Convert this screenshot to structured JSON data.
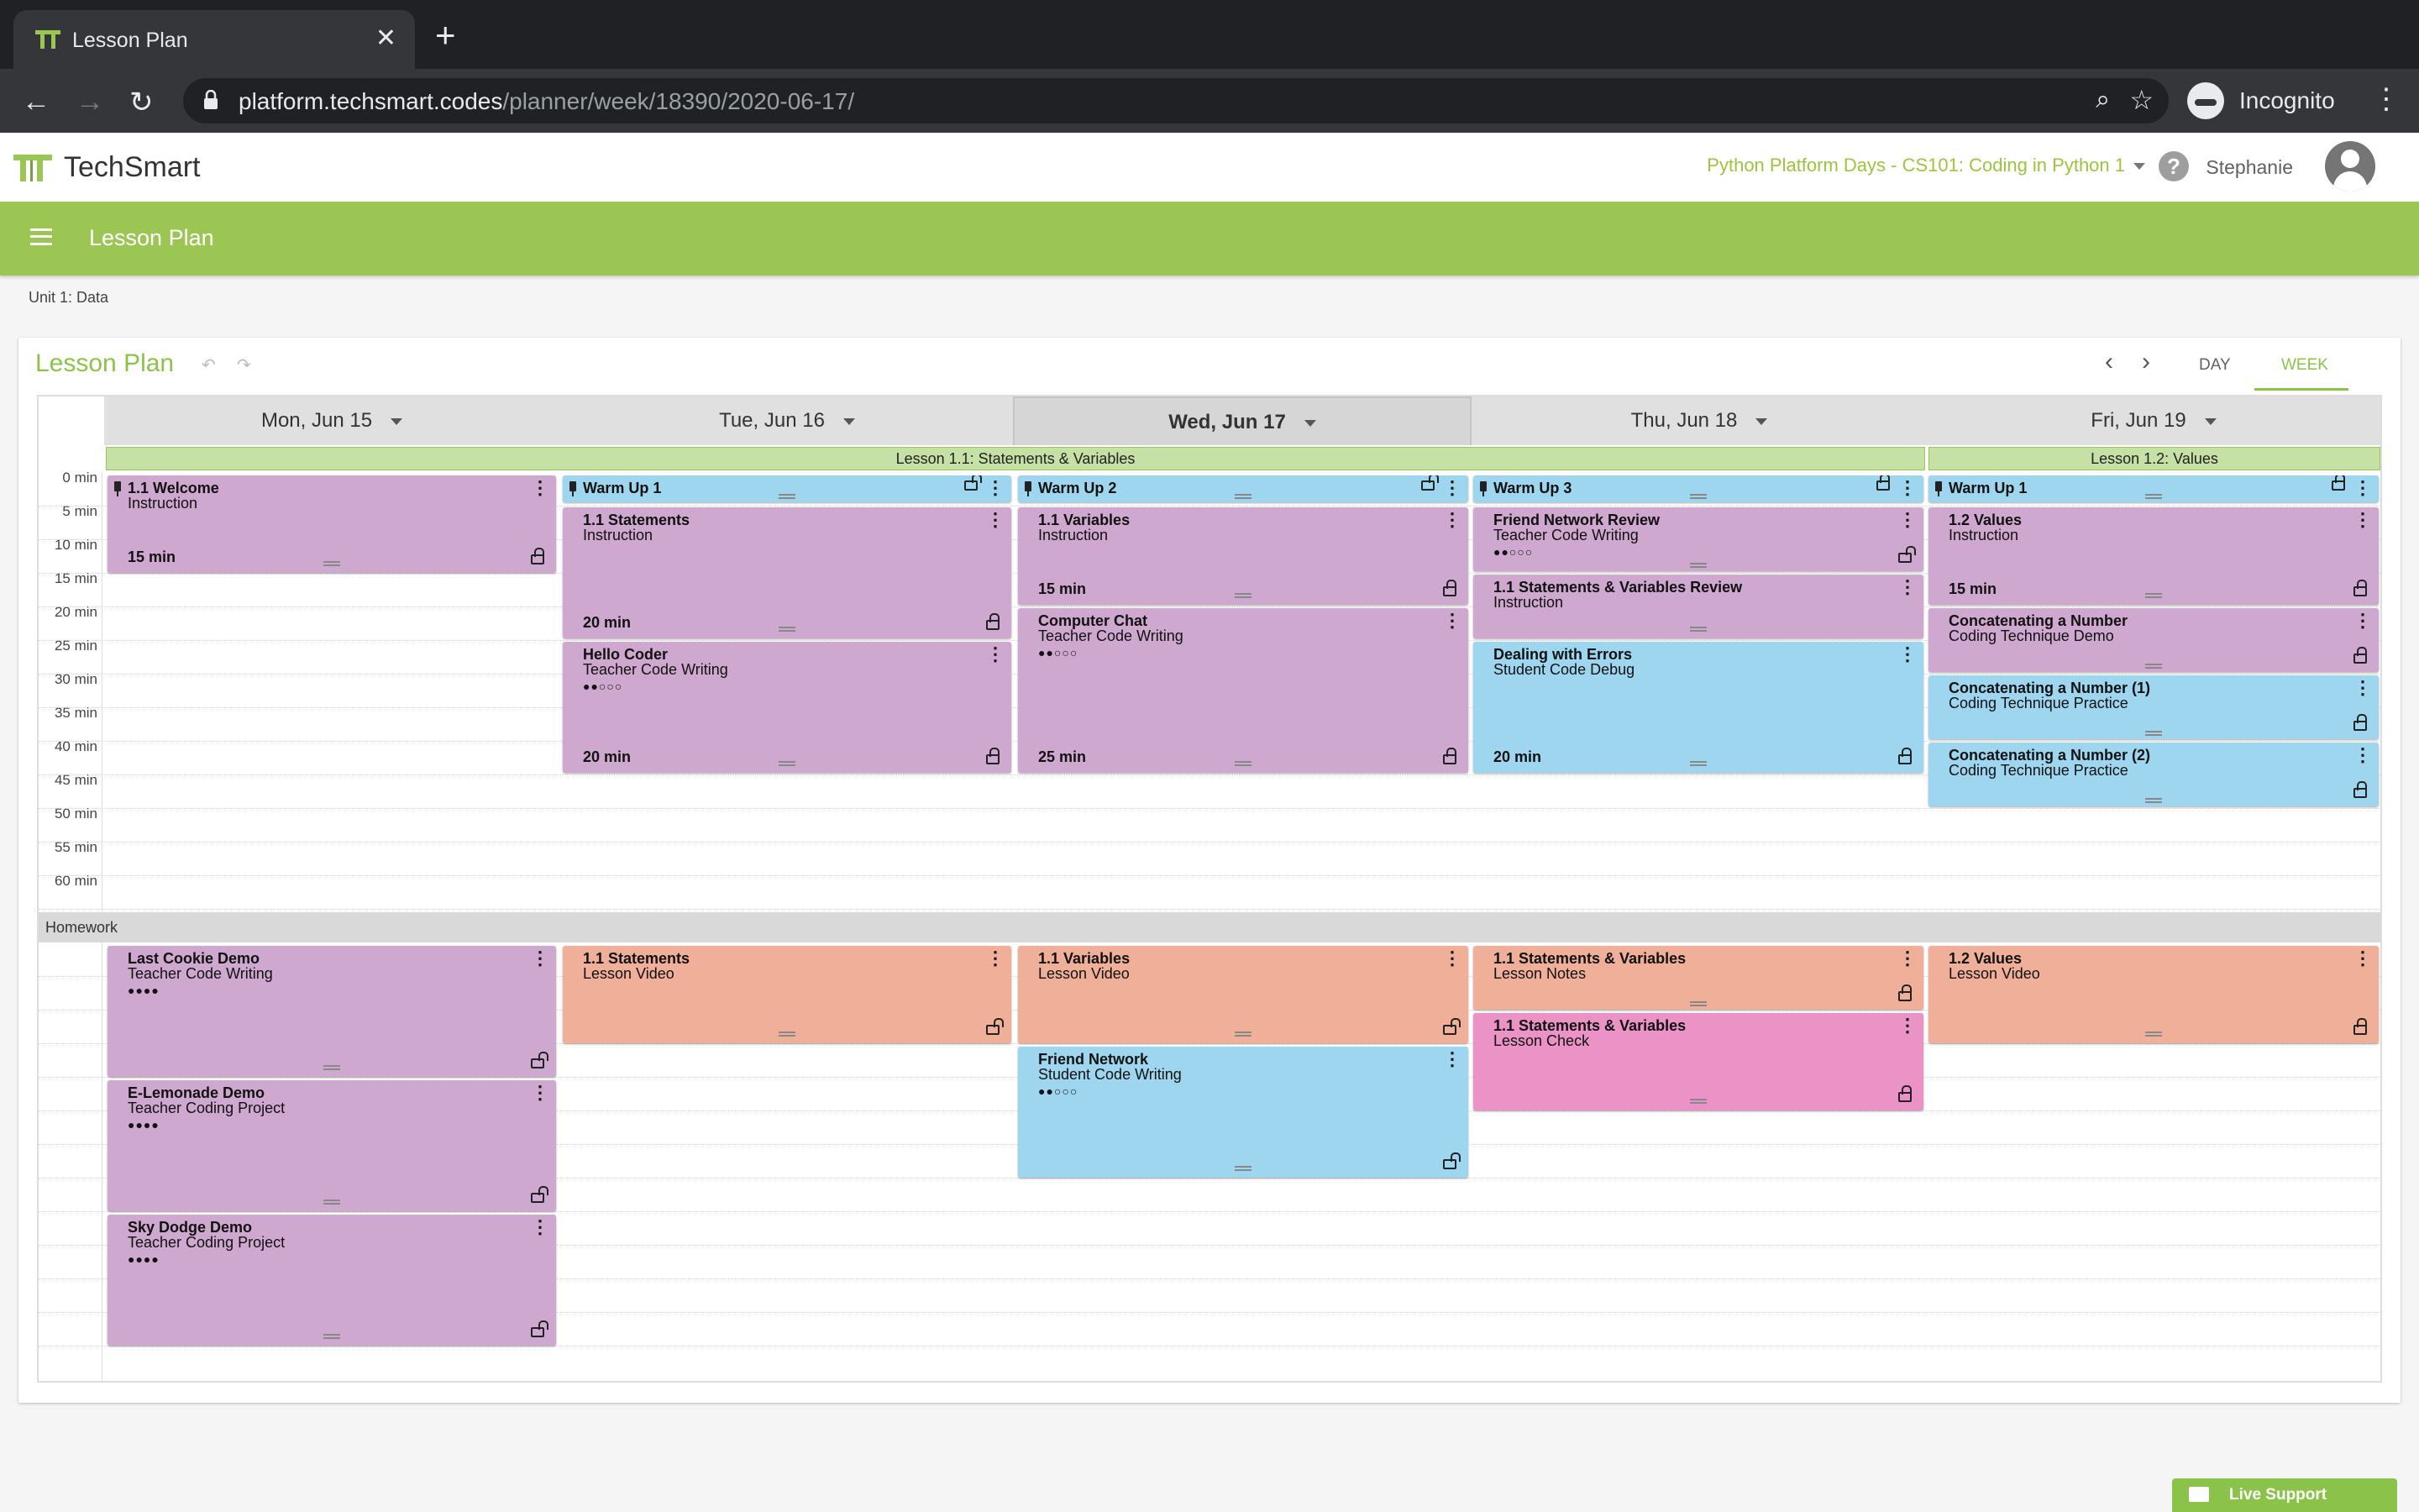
{
  "browser": {
    "tab_title": "Lesson Plan",
    "url_domain": "platform.techsmart.codes",
    "url_path": "/planner/week/18390/2020-06-17/",
    "incognito_label": "Incognito"
  },
  "header": {
    "logo_text": "TechSmart",
    "course": "Python Platform Days - CS101: Coding in Python 1",
    "user_name": "Stephanie"
  },
  "toolbar": {
    "title": "Lesson Plan"
  },
  "breadcrumb": "Unit 1: Data",
  "planner": {
    "title": "Lesson Plan",
    "view_day": "DAY",
    "view_week": "WEEK",
    "active_view": "WEEK",
    "days": [
      "Mon, Jun 15",
      "Tue, Jun 16",
      "Wed, Jun 17",
      "Thu, Jun 18",
      "Fri, Jun 19"
    ],
    "active_day": "Wed, Jun 17",
    "lessons": [
      "Lesson 1.1: Statements & Variables",
      "Lesson 1.2: Values"
    ],
    "time_labels": [
      "0 min",
      "5 min",
      "10 min",
      "15 min",
      "20 min",
      "25 min",
      "30 min",
      "35 min",
      "40 min",
      "45 min",
      "50 min",
      "55 min",
      "60 min"
    ],
    "homework_label": "Homework"
  },
  "events": [
    {
      "title": "1.1 Welcome",
      "subtitle": "Instruction",
      "duration": "15 min"
    },
    {
      "title": "Warm Up 1"
    },
    {
      "title": "1.1 Statements",
      "subtitle": "Instruction",
      "duration": "20 min"
    },
    {
      "title": "Hello Coder",
      "subtitle": "Teacher Code Writing",
      "duration": "20 min",
      "dots": "●●○○○"
    },
    {
      "title": "Warm Up 2"
    },
    {
      "title": "1.1 Variables",
      "subtitle": "Instruction",
      "duration": "15 min"
    },
    {
      "title": "Computer Chat",
      "subtitle": "Teacher Code Writing",
      "duration": "25 min",
      "dots": "●●○○○"
    },
    {
      "title": "Warm Up 3"
    },
    {
      "title": "Friend Network Review",
      "subtitle": "Teacher Code Writing",
      "dots": "●●○○○"
    },
    {
      "title": "1.1 Statements & Variables Review",
      "subtitle": "Instruction"
    },
    {
      "title": "Dealing with Errors",
      "subtitle": "Student Code Debug",
      "duration": "20 min"
    },
    {
      "title": "Warm Up 1"
    },
    {
      "title": "1.2 Values",
      "subtitle": "Instruction",
      "duration": "15 min"
    },
    {
      "title": "Concatenating a Number",
      "subtitle": "Coding Technique Demo"
    },
    {
      "title": "Concatenating a Number (1)",
      "subtitle": "Coding Technique Practice"
    },
    {
      "title": "Concatenating a Number (2)",
      "subtitle": "Coding Technique Practice"
    }
  ],
  "homework": [
    {
      "title": "Last Cookie Demo",
      "subtitle": "Teacher Code Writing",
      "dots": "●●●●"
    },
    {
      "title": "E-Lemonade Demo",
      "subtitle": "Teacher Coding Project",
      "dots": "●●●●"
    },
    {
      "title": "Sky Dodge Demo",
      "subtitle": "Teacher Coding Project",
      "dots": "●●●●"
    },
    {
      "title": "1.1 Statements",
      "subtitle": "Lesson Video"
    },
    {
      "title": "1.1 Variables",
      "subtitle": "Lesson Video"
    },
    {
      "title": "Friend Network",
      "subtitle": "Student Code Writing",
      "dots": "●●○○○"
    },
    {
      "title": "1.1 Statements & Variables",
      "subtitle": "Lesson Notes"
    },
    {
      "title": "1.1 Statements & Variables",
      "subtitle": "Lesson Check"
    },
    {
      "title": "1.2 Values",
      "subtitle": "Lesson Video"
    }
  ],
  "support": {
    "label": "Live Support"
  },
  "colors": {
    "brand_green": "#9bc653",
    "instruction_purple": "#cfa8cf",
    "practice_blue": "#9fd6ef",
    "video_orange": "#f0af98",
    "check_pink": "#eb92c6"
  }
}
